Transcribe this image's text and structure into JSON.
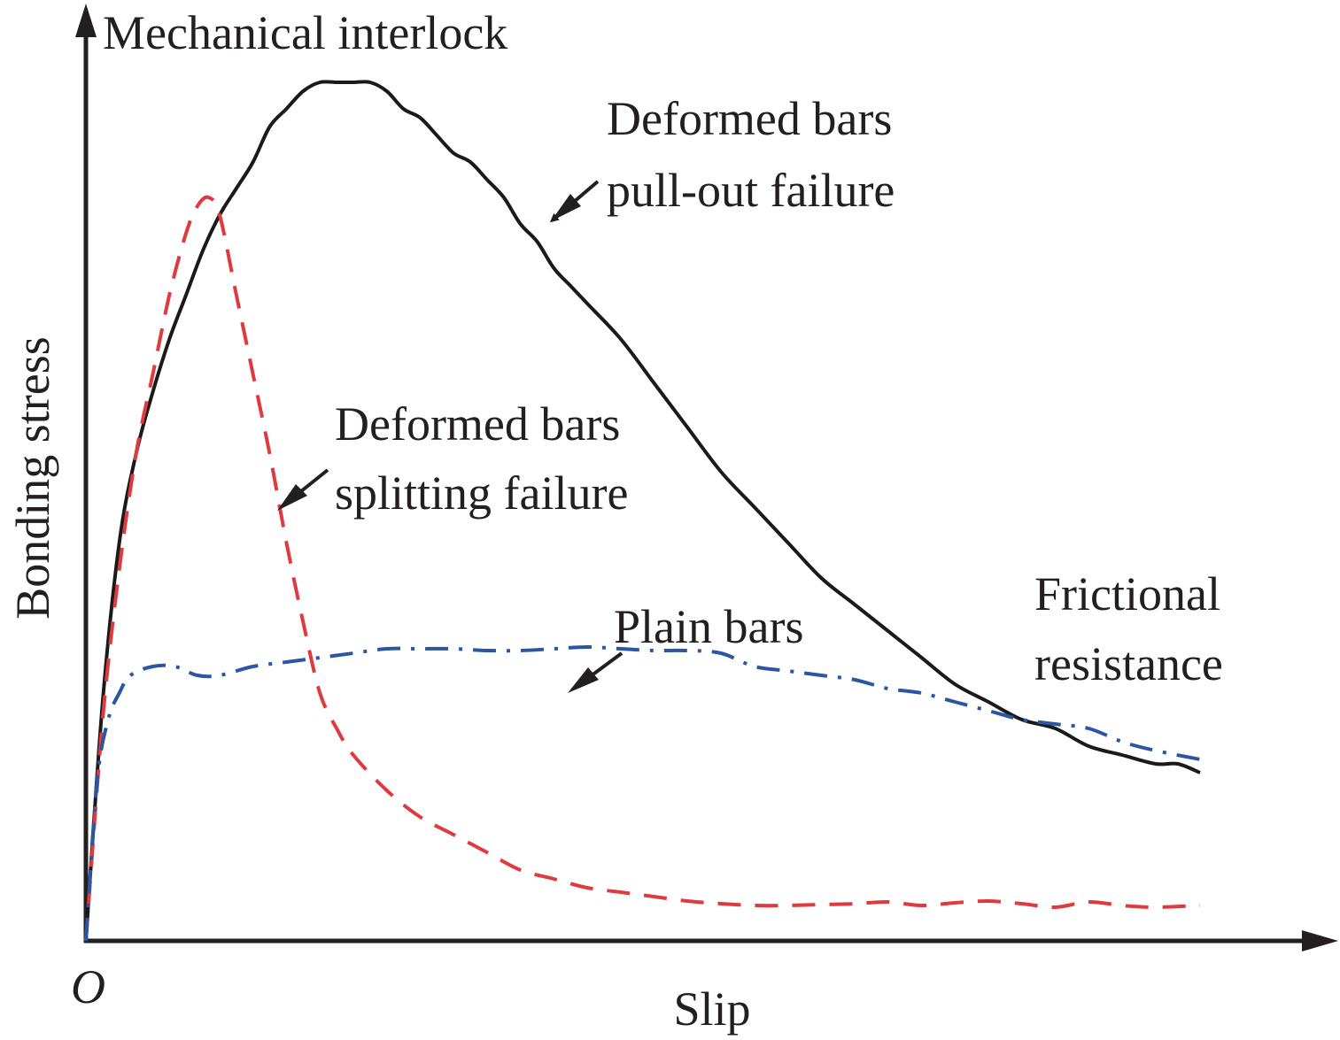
{
  "chart_data": {
    "type": "line",
    "title": "",
    "xlabel": "Slip",
    "ylabel": "Bonding stress",
    "origin_label": "O",
    "xlim": [
      0,
      1
    ],
    "ylim": [
      0,
      1
    ],
    "grid": false,
    "ticks": "none (qualitative schematic)",
    "series": [
      {
        "name": "Deformed bars pull-out failure",
        "style": "solid",
        "color": "#1a1a1a",
        "x": [
          0.0,
          0.015,
          0.03,
          0.045,
          0.06,
          0.075,
          0.09,
          0.105,
          0.12,
          0.135,
          0.15,
          0.165,
          0.18,
          0.195,
          0.21,
          0.225,
          0.24,
          0.255,
          0.27,
          0.285,
          0.3,
          0.315,
          0.33,
          0.345,
          0.36,
          0.375,
          0.39,
          0.405,
          0.42,
          0.435,
          0.45,
          0.48,
          0.51,
          0.54,
          0.57,
          0.6,
          0.63,
          0.66,
          0.69,
          0.72,
          0.75,
          0.78,
          0.81,
          0.84,
          0.87,
          0.9,
          0.93,
          0.96,
          0.98,
          1.0
        ],
        "y": [
          0.0,
          0.27,
          0.45,
          0.55,
          0.62,
          0.68,
          0.73,
          0.78,
          0.82,
          0.85,
          0.88,
          0.92,
          0.94,
          0.96,
          0.97,
          0.97,
          0.97,
          0.97,
          0.96,
          0.94,
          0.93,
          0.91,
          0.89,
          0.88,
          0.86,
          0.84,
          0.81,
          0.79,
          0.76,
          0.74,
          0.72,
          0.68,
          0.63,
          0.58,
          0.53,
          0.49,
          0.45,
          0.41,
          0.38,
          0.35,
          0.32,
          0.29,
          0.27,
          0.25,
          0.24,
          0.22,
          0.21,
          0.2,
          0.2,
          0.19
        ],
        "annotation": [
          "Deformed bars",
          "pull-out failure"
        ],
        "peak_label": "Mechanical interlock",
        "tail_label": [
          "Frictional",
          "resistance"
        ]
      },
      {
        "name": "Deformed bars splitting failure",
        "style": "dashed",
        "color": "#e03a3e",
        "x": [
          0.0,
          0.015,
          0.03,
          0.045,
          0.06,
          0.075,
          0.09,
          0.1,
          0.11,
          0.12,
          0.135,
          0.15,
          0.165,
          0.18,
          0.195,
          0.21,
          0.225,
          0.24,
          0.27,
          0.3,
          0.33,
          0.36,
          0.39,
          0.42,
          0.45,
          0.48,
          0.51,
          0.54,
          0.57,
          0.6,
          0.63,
          0.66,
          0.69,
          0.72,
          0.75,
          0.78,
          0.81,
          0.84,
          0.87,
          0.9,
          0.93,
          0.96,
          1.0
        ],
        "y": [
          0.0,
          0.25,
          0.42,
          0.55,
          0.64,
          0.73,
          0.8,
          0.83,
          0.84,
          0.82,
          0.73,
          0.64,
          0.55,
          0.45,
          0.36,
          0.28,
          0.24,
          0.21,
          0.17,
          0.14,
          0.12,
          0.1,
          0.08,
          0.07,
          0.06,
          0.055,
          0.05,
          0.045,
          0.042,
          0.04,
          0.04,
          0.041,
          0.042,
          0.044,
          0.04,
          0.043,
          0.045,
          0.042,
          0.038,
          0.044,
          0.04,
          0.038,
          0.04
        ],
        "annotation": [
          "Deformed bars",
          "splitting failure"
        ]
      },
      {
        "name": "Plain bars",
        "style": "dash-dot",
        "color": "#2b56a4",
        "x": [
          0.0,
          0.01,
          0.02,
          0.03,
          0.04,
          0.06,
          0.08,
          0.1,
          0.12,
          0.15,
          0.18,
          0.21,
          0.24,
          0.27,
          0.3,
          0.33,
          0.36,
          0.39,
          0.42,
          0.45,
          0.48,
          0.51,
          0.54,
          0.57,
          0.6,
          0.63,
          0.66,
          0.69,
          0.72,
          0.75,
          0.78,
          0.81,
          0.84,
          0.87,
          0.9,
          0.93,
          0.96,
          1.0
        ],
        "y": [
          0.0,
          0.18,
          0.25,
          0.28,
          0.3,
          0.31,
          0.31,
          0.3,
          0.3,
          0.31,
          0.315,
          0.32,
          0.325,
          0.33,
          0.33,
          0.33,
          0.328,
          0.328,
          0.33,
          0.332,
          0.33,
          0.328,
          0.328,
          0.325,
          0.31,
          0.305,
          0.3,
          0.295,
          0.285,
          0.28,
          0.27,
          0.26,
          0.25,
          0.245,
          0.24,
          0.225,
          0.215,
          0.205
        ],
        "annotation": [
          "Plain bars"
        ]
      }
    ]
  }
}
